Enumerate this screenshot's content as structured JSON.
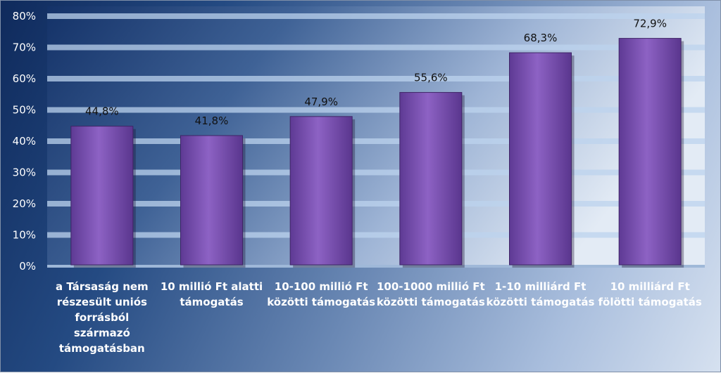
{
  "chart_data": {
    "type": "bar",
    "title": "",
    "xlabel": "",
    "ylabel": "",
    "ylim": [
      0,
      80
    ],
    "yticks": [
      "0%",
      "10%",
      "20%",
      "30%",
      "40%",
      "50%",
      "60%",
      "70%",
      "80%"
    ],
    "categories": [
      [
        "a Társaság nem",
        "részesült uniós",
        "forrásból",
        "származó",
        "támogatásban"
      ],
      [
        "10 millió Ft alatti",
        "támogatás"
      ],
      [
        "10-100 millió Ft",
        "közötti támogatás"
      ],
      [
        "100-1000 millió Ft",
        "közötti támogatás"
      ],
      [
        "1-10 milliárd Ft",
        "közötti támogatás"
      ],
      [
        "10 milliárd Ft",
        "fölötti támogatás"
      ]
    ],
    "values": [
      44.8,
      41.8,
      47.9,
      55.6,
      68.3,
      72.9
    ],
    "data_labels": [
      "44,8%",
      "41,8%",
      "47,9%",
      "55,6%",
      "68,3%",
      "72,9%"
    ],
    "bar_color": "#7a4fb0",
    "grid": true,
    "legend": "none"
  }
}
